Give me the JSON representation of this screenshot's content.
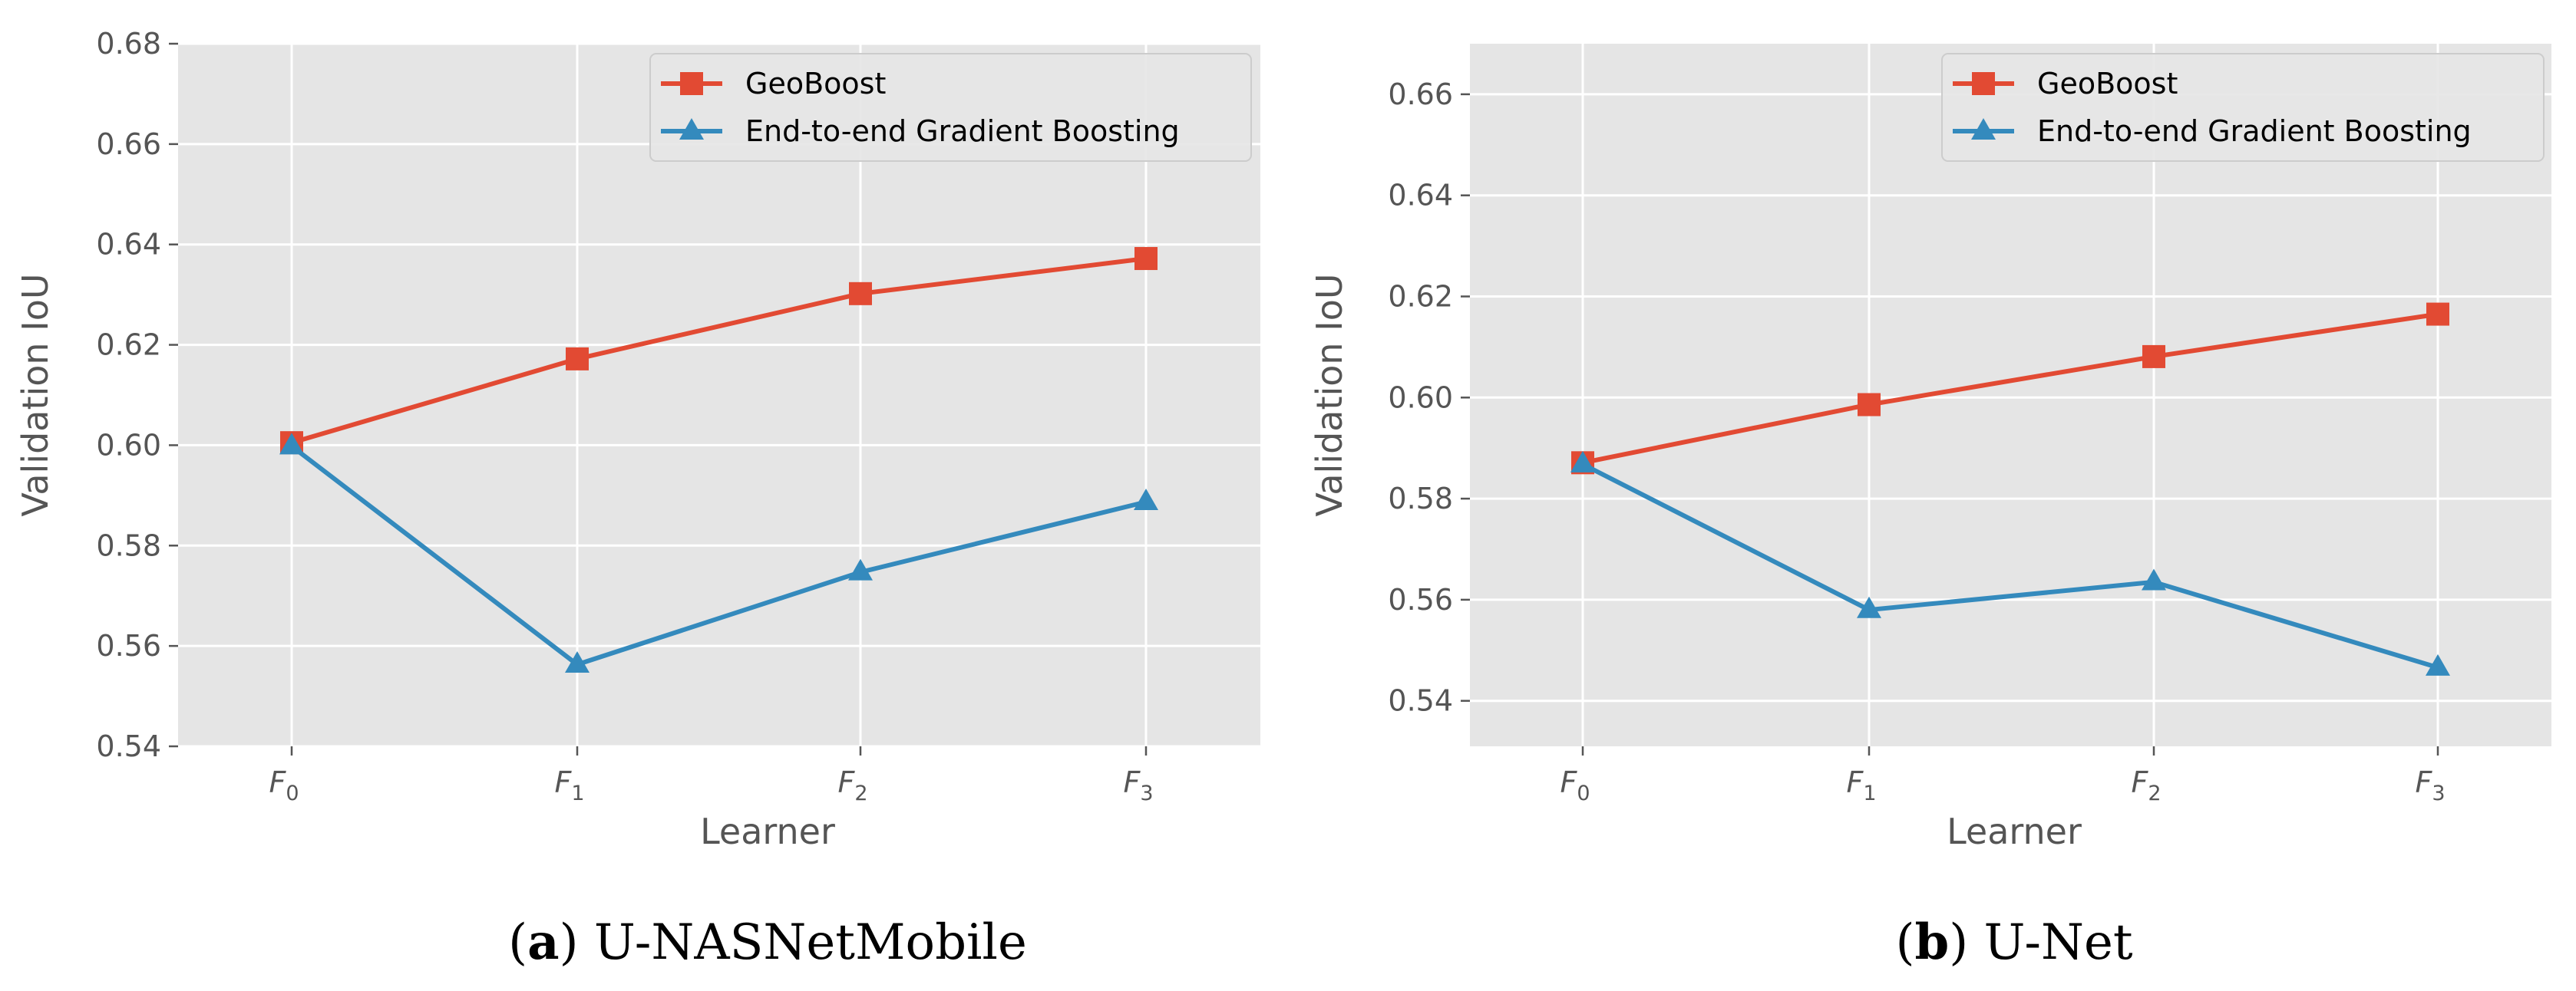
{
  "chart_data": [
    {
      "type": "line",
      "caption_label": "a",
      "caption_text": "U-NASNetMobile",
      "xlabel": "Learner",
      "ylabel": "Validation IoU",
      "categories": [
        "F0",
        "F1",
        "F2",
        "F3"
      ],
      "ylim": [
        0.54,
        0.68
      ],
      "yticks": [
        "0.54",
        "0.56",
        "0.58",
        "0.60",
        "0.62",
        "0.64",
        "0.66",
        "0.68"
      ],
      "grid": true,
      "legend_position": "top-right",
      "series": [
        {
          "name": "GeoBoost",
          "marker": "square",
          "values": [
            0.6005,
            0.6172,
            0.6302,
            0.6372
          ]
        },
        {
          "name": "End-to-end Gradient Boosting",
          "marker": "triangle",
          "values": [
            0.5998,
            0.5563,
            0.5747,
            0.5887
          ]
        }
      ]
    },
    {
      "type": "line",
      "caption_label": "b",
      "caption_text": "U-Net",
      "xlabel": "Learner",
      "ylabel": "Validation IoU",
      "categories": [
        "F0",
        "F1",
        "F2",
        "F3"
      ],
      "ylim": [
        0.531,
        0.67
      ],
      "yticks": [
        "0.54",
        "0.56",
        "0.58",
        "0.60",
        "0.62",
        "0.64",
        "0.66"
      ],
      "grid": true,
      "legend_position": "top-right",
      "series": [
        {
          "name": "GeoBoost",
          "marker": "square",
          "values": [
            0.5871,
            0.5986,
            0.6081,
            0.6165
          ]
        },
        {
          "name": "End-to-end Gradient Boosting",
          "marker": "triangle",
          "values": [
            0.5868,
            0.558,
            0.5635,
            0.5466
          ]
        }
      ]
    }
  ],
  "colors": {
    "geoboost": "#E24A33",
    "e2e": "#348ABD",
    "panel_bg": "#E5E5E5",
    "grid": "#FFFFFF"
  }
}
